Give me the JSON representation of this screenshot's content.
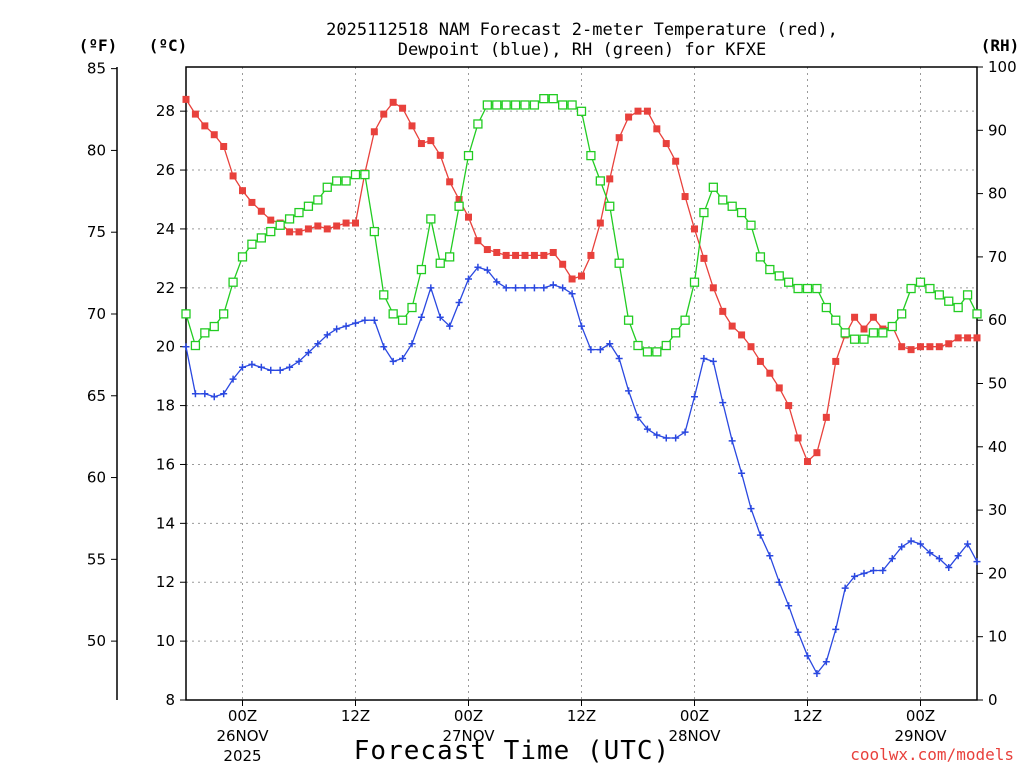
{
  "chart_data": {
    "type": "line",
    "title_line1": "2025112518 NAM Forecast 2-meter Temperature (red),",
    "title_line2": "Dewpoint (blue), RH (green) for KFXE",
    "unit_f": "(ºF)",
    "unit_c": "(ºC)",
    "unit_rh": "(RH)",
    "xlabel": "Forecast Time (UTC)",
    "credit": "coolwx.com/models",
    "x_range_hours": [
      0,
      84
    ],
    "celsius_range": [
      8,
      29.5
    ],
    "rh_range": [
      0,
      100
    ],
    "fahrenheit_ticks": [
      "50",
      "55",
      "60",
      "65",
      "70",
      "75",
      "80",
      "85"
    ],
    "fahrenheit_tick_values": [
      50,
      55,
      60,
      65,
      70,
      75,
      80,
      85
    ],
    "celsius_ticks": [
      "8",
      "10",
      "12",
      "14",
      "16",
      "18",
      "20",
      "22",
      "24",
      "26",
      "28"
    ],
    "celsius_tick_values": [
      8,
      10,
      12,
      14,
      16,
      18,
      20,
      22,
      24,
      26,
      28
    ],
    "rh_ticks": [
      "0",
      "10",
      "20",
      "30",
      "40",
      "50",
      "60",
      "70",
      "80",
      "90",
      "100"
    ],
    "rh_tick_values": [
      0,
      10,
      20,
      30,
      40,
      50,
      60,
      70,
      80,
      90,
      100
    ],
    "x_ticks": [
      {
        "hour": 6,
        "line1": "00Z",
        "line2": "26NOV",
        "line3": "2025"
      },
      {
        "hour": 18,
        "line1": "12Z",
        "line2": "",
        "line3": ""
      },
      {
        "hour": 30,
        "line1": "00Z",
        "line2": "27NOV",
        "line3": ""
      },
      {
        "hour": 42,
        "line1": "12Z",
        "line2": "",
        "line3": ""
      },
      {
        "hour": 54,
        "line1": "00Z",
        "line2": "28NOV",
        "line3": ""
      },
      {
        "hour": 66,
        "line1": "12Z",
        "line2": "",
        "line3": ""
      },
      {
        "hour": 78,
        "line1": "00Z",
        "line2": "29NOV",
        "line3": ""
      }
    ],
    "series": [
      {
        "name": "Temperature",
        "unit": "C",
        "color": "#e8413c",
        "values": [
          28.4,
          27.9,
          27.5,
          27.2,
          26.8,
          25.8,
          25.3,
          24.9,
          24.6,
          24.3,
          24.2,
          23.9,
          23.9,
          24.0,
          24.1,
          24.0,
          24.1,
          24.2,
          24.2,
          25.9,
          27.3,
          27.9,
          28.3,
          28.1,
          27.5,
          26.9,
          27.0,
          26.5,
          25.6,
          25.0,
          24.4,
          23.6,
          23.3,
          23.2,
          23.1,
          23.1,
          23.1,
          23.1,
          23.1,
          23.2,
          22.8,
          22.3,
          22.4,
          23.1,
          24.2,
          25.7,
          27.1,
          27.8,
          28.0,
          28.0,
          27.4,
          26.9,
          26.3,
          25.1,
          24.0,
          23.0,
          22.0,
          21.2,
          20.7,
          20.4,
          20.0,
          19.5,
          19.1,
          18.6,
          18.0,
          16.9,
          16.1,
          16.4,
          17.6,
          19.5,
          20.4,
          21.0,
          20.6,
          21.0,
          20.6,
          20.7,
          20.0,
          19.9,
          20.0,
          20.0,
          20.0,
          20.1,
          20.3,
          20.3,
          20.3
        ]
      },
      {
        "name": "Dewpoint",
        "unit": "C",
        "color": "#2a48e0",
        "values": [
          20.0,
          18.4,
          18.4,
          18.3,
          18.4,
          18.9,
          19.3,
          19.4,
          19.3,
          19.2,
          19.2,
          19.3,
          19.5,
          19.8,
          20.1,
          20.4,
          20.6,
          20.7,
          20.8,
          20.9,
          20.9,
          20.0,
          19.5,
          19.6,
          20.1,
          21.0,
          22.0,
          21.0,
          20.7,
          21.5,
          22.3,
          22.7,
          22.6,
          22.2,
          22.0,
          22.0,
          22.0,
          22.0,
          22.0,
          22.1,
          22.0,
          21.8,
          20.7,
          19.9,
          19.9,
          20.1,
          19.6,
          18.5,
          17.6,
          17.2,
          17.0,
          16.9,
          16.9,
          17.1,
          18.3,
          19.6,
          19.5,
          18.1,
          16.8,
          15.7,
          14.5,
          13.6,
          12.9,
          12.0,
          11.2,
          10.3,
          9.5,
          8.9,
          9.3,
          10.4,
          11.8,
          12.2,
          12.3,
          12.4,
          12.4,
          12.8,
          13.2,
          13.4,
          13.3,
          13.0,
          12.8,
          12.5,
          12.9,
          13.3,
          12.7
        ]
      },
      {
        "name": "Relative Humidity",
        "unit": "%",
        "color": "#22cc22",
        "values": [
          61,
          56,
          58,
          59,
          61,
          66,
          70,
          72,
          73,
          74,
          75,
          76,
          77,
          78,
          79,
          81,
          82,
          82,
          83,
          83,
          74,
          64,
          61,
          60,
          62,
          68,
          76,
          69,
          70,
          78,
          86,
          91,
          94,
          94,
          94,
          94,
          94,
          94,
          95,
          95,
          94,
          94,
          93,
          86,
          82,
          78,
          69,
          60,
          56,
          55,
          55,
          56,
          58,
          60,
          66,
          77,
          81,
          79,
          78,
          77,
          75,
          70,
          68,
          67,
          66,
          65,
          65,
          65,
          62,
          60,
          58,
          57,
          57,
          58,
          58,
          59,
          61,
          65,
          66,
          65,
          64,
          63,
          62,
          64,
          61
        ]
      }
    ]
  }
}
